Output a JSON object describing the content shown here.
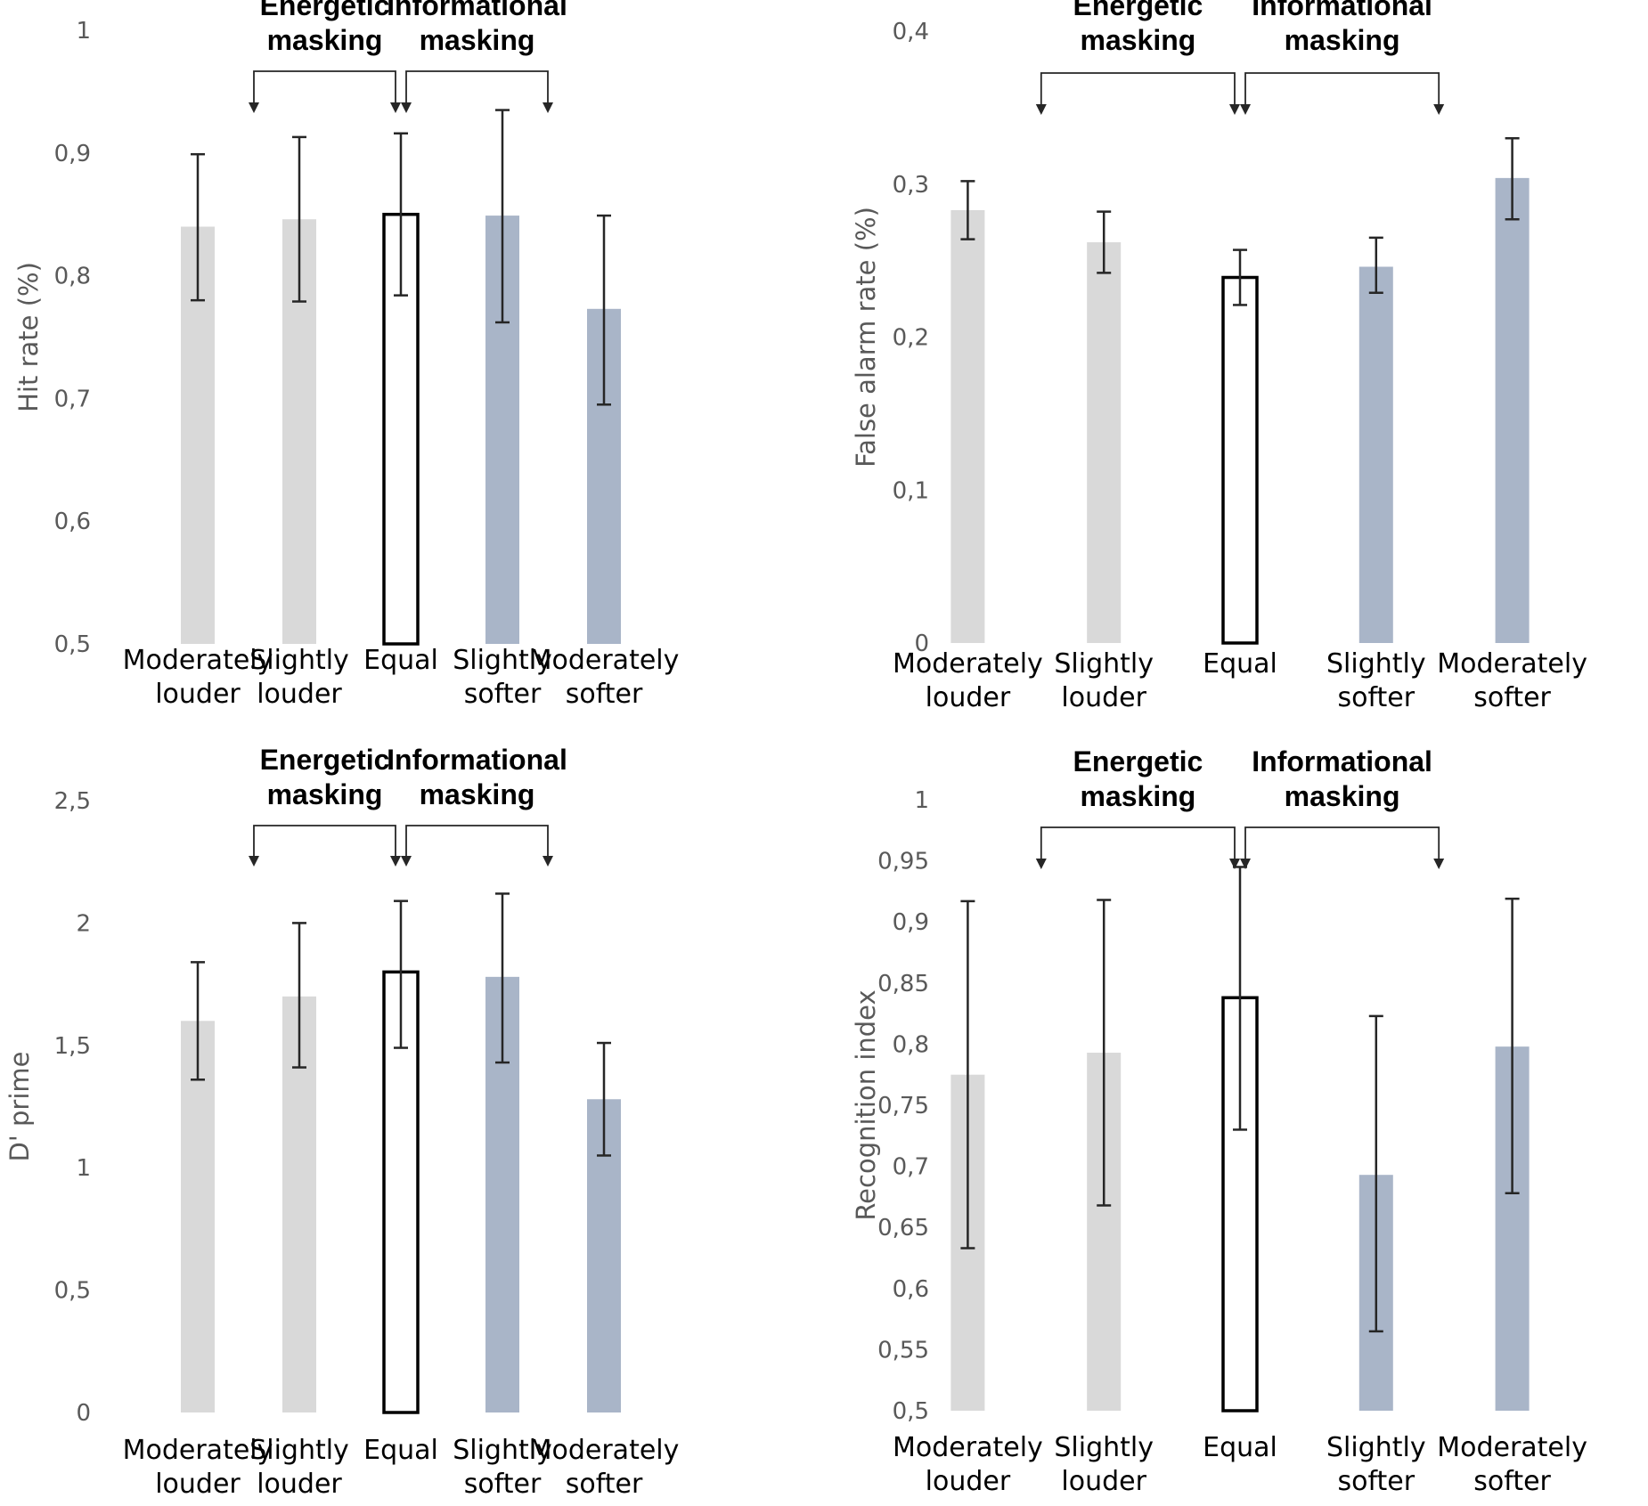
{
  "colors": {
    "louder": "#d9d9d9",
    "equal_fill": "#ffffff",
    "equal_stroke": "#000000",
    "softer": "#a9b5c8",
    "error_bar": "#262626",
    "tick_text": "#595959",
    "bracket": "#262626"
  },
  "chart_data": [
    {
      "type": "bar",
      "id": "hit-rate",
      "ylabel": "Hit rate (%)",
      "ylim": [
        0.5,
        1
      ],
      "yticks": [
        "0,5",
        "0,6",
        "0,7",
        "0,8",
        "0,9",
        "1"
      ],
      "ytick_values": [
        0.5,
        0.6,
        0.7,
        0.8,
        0.9,
        1
      ],
      "categories": [
        [
          "Moderately",
          "louder"
        ],
        [
          "Slightly",
          "louder"
        ],
        [
          "Equal"
        ],
        [
          "Slightly",
          "softer"
        ],
        [
          "Moderately",
          "softer"
        ]
      ],
      "styles": [
        "louder",
        "louder",
        "equal",
        "softer",
        "softer"
      ],
      "values": [
        0.84,
        0.846,
        0.85,
        0.849,
        0.773
      ],
      "err_low": [
        0.78,
        0.779,
        0.784,
        0.762,
        0.695
      ],
      "err_high": [
        0.899,
        0.913,
        0.916,
        0.935,
        0.849
      ],
      "groups": [
        {
          "label": [
            "Energetic",
            "masking"
          ],
          "from": 0.5,
          "to": 2
        },
        {
          "label": [
            "Informational",
            "masking"
          ],
          "from": 2,
          "to": 3.5
        }
      ]
    },
    {
      "type": "bar",
      "id": "false-alarm-rate",
      "ylabel": "False alarm rate (%)",
      "ylim": [
        0,
        0.4
      ],
      "yticks": [
        "0",
        "0,1",
        "0,2",
        "0,3",
        "0,4"
      ],
      "ytick_values": [
        0,
        0.1,
        0.2,
        0.3,
        0.4
      ],
      "categories": [
        [
          "Moderately",
          "louder"
        ],
        [
          "Slightly",
          "louder"
        ],
        [
          "Equal"
        ],
        [
          "Slightly",
          "softer"
        ],
        [
          "Moderately",
          "softer"
        ]
      ],
      "styles": [
        "louder",
        "louder",
        "equal",
        "softer",
        "softer"
      ],
      "values": [
        0.283,
        0.262,
        0.239,
        0.246,
        0.304
      ],
      "err_low": [
        0.264,
        0.242,
        0.221,
        0.229,
        0.277
      ],
      "err_high": [
        0.302,
        0.282,
        0.257,
        0.265,
        0.33
      ],
      "groups": [
        {
          "label": [
            "Energetic",
            "masking"
          ],
          "from": 0.5,
          "to": 2
        },
        {
          "label": [
            "Informational",
            "masking"
          ],
          "from": 2,
          "to": 3.5
        }
      ]
    },
    {
      "type": "bar",
      "id": "d-prime",
      "ylabel": "D' prime",
      "ylim": [
        0,
        2.5
      ],
      "yticks": [
        "0",
        "0,5",
        "1",
        "1,5",
        "2",
        "2,5"
      ],
      "ytick_values": [
        0,
        0.5,
        1,
        1.5,
        2,
        2.5
      ],
      "categories": [
        [
          "Moderately",
          "louder"
        ],
        [
          "Slightly",
          "louder"
        ],
        [
          "Equal"
        ],
        [
          "Slightly",
          "softer"
        ],
        [
          "Moderately",
          "softer"
        ]
      ],
      "styles": [
        "louder",
        "louder",
        "equal",
        "softer",
        "softer"
      ],
      "values": [
        1.6,
        1.7,
        1.8,
        1.78,
        1.28
      ],
      "err_low": [
        1.36,
        1.41,
        1.49,
        1.43,
        1.05
      ],
      "err_high": [
        1.84,
        2.0,
        2.09,
        2.12,
        1.51
      ],
      "groups": [
        {
          "label": [
            "Energetic",
            "masking"
          ],
          "from": 0.5,
          "to": 2
        },
        {
          "label": [
            "Informational",
            "masking"
          ],
          "from": 2,
          "to": 3.5
        }
      ]
    },
    {
      "type": "bar",
      "id": "recognition-index",
      "ylabel": "Recognition index",
      "ylim": [
        0.5,
        1
      ],
      "yticks": [
        "0,5",
        "0,55",
        "0,6",
        "0,65",
        "0,7",
        "0,75",
        "0,8",
        "0,85",
        "0,9",
        "0,95",
        "1"
      ],
      "ytick_values": [
        0.5,
        0.55,
        0.6,
        0.65,
        0.7,
        0.75,
        0.8,
        0.85,
        0.9,
        0.95,
        1
      ],
      "categories": [
        [
          "Moderately",
          "louder"
        ],
        [
          "Slightly",
          "louder"
        ],
        [
          "Equal"
        ],
        [
          "Slightly",
          "softer"
        ],
        [
          "Moderately",
          "softer"
        ]
      ],
      "styles": [
        "louder",
        "louder",
        "equal",
        "softer",
        "softer"
      ],
      "values": [
        0.775,
        0.793,
        0.838,
        0.693,
        0.798
      ],
      "err_low": [
        0.633,
        0.668,
        0.73,
        0.565,
        0.678
      ],
      "err_high": [
        0.917,
        0.918,
        0.945,
        0.823,
        0.919
      ],
      "groups": [
        {
          "label": [
            "Energetic",
            "masking"
          ],
          "from": 0.5,
          "to": 2
        },
        {
          "label": [
            "Informational",
            "masking"
          ],
          "from": 2,
          "to": 3.5
        }
      ]
    }
  ]
}
